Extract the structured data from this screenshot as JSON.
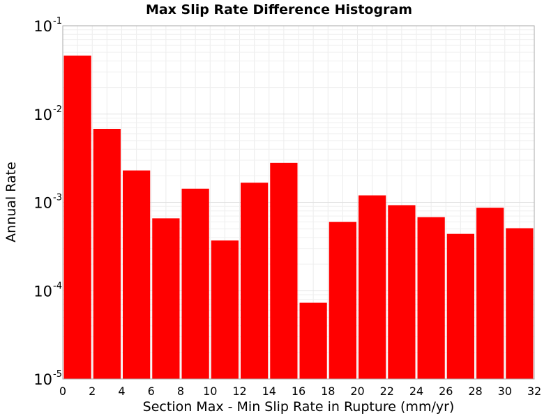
{
  "chart_data": {
    "type": "bar",
    "title": "Max Slip Rate Difference Histogram",
    "xlabel": "Section Max - Min Slip Rate in Rupture (mm/yr)",
    "ylabel": "Annual Rate",
    "xlim": [
      0,
      32
    ],
    "ylim": [
      1e-05,
      0.1
    ],
    "yscale": "log",
    "grid": true,
    "bar_color": "#ff0000",
    "bin_width": 2,
    "x_ticks": [
      "0",
      "2",
      "4",
      "6",
      "8",
      "10",
      "12",
      "14",
      "16",
      "18",
      "20",
      "22",
      "24",
      "26",
      "28",
      "30",
      "32"
    ],
    "y_ticks": [
      {
        "base": "10",
        "exp": "-5",
        "value": 1e-05
      },
      {
        "base": "10",
        "exp": "-4",
        "value": 0.0001
      },
      {
        "base": "10",
        "exp": "-3",
        "value": 0.001
      },
      {
        "base": "10",
        "exp": "-2",
        "value": 0.01
      },
      {
        "base": "10",
        "exp": "-1",
        "value": 0.1
      }
    ],
    "bins": [
      {
        "x": 1,
        "value": 0.046
      },
      {
        "x": 3,
        "value": 0.0068
      },
      {
        "x": 5,
        "value": 0.0023
      },
      {
        "x": 7,
        "value": 0.00066
      },
      {
        "x": 9,
        "value": 0.00143
      },
      {
        "x": 11,
        "value": 0.00037
      },
      {
        "x": 13,
        "value": 0.00167
      },
      {
        "x": 15,
        "value": 0.0028
      },
      {
        "x": 17,
        "value": 7.3e-05
      },
      {
        "x": 19,
        "value": 0.0006
      },
      {
        "x": 21,
        "value": 0.0012
      },
      {
        "x": 23,
        "value": 0.00093
      },
      {
        "x": 25,
        "value": 0.00068
      },
      {
        "x": 27,
        "value": 0.00044
      },
      {
        "x": 29,
        "value": 0.00087
      },
      {
        "x": 31,
        "value": 0.00051
      }
    ]
  }
}
